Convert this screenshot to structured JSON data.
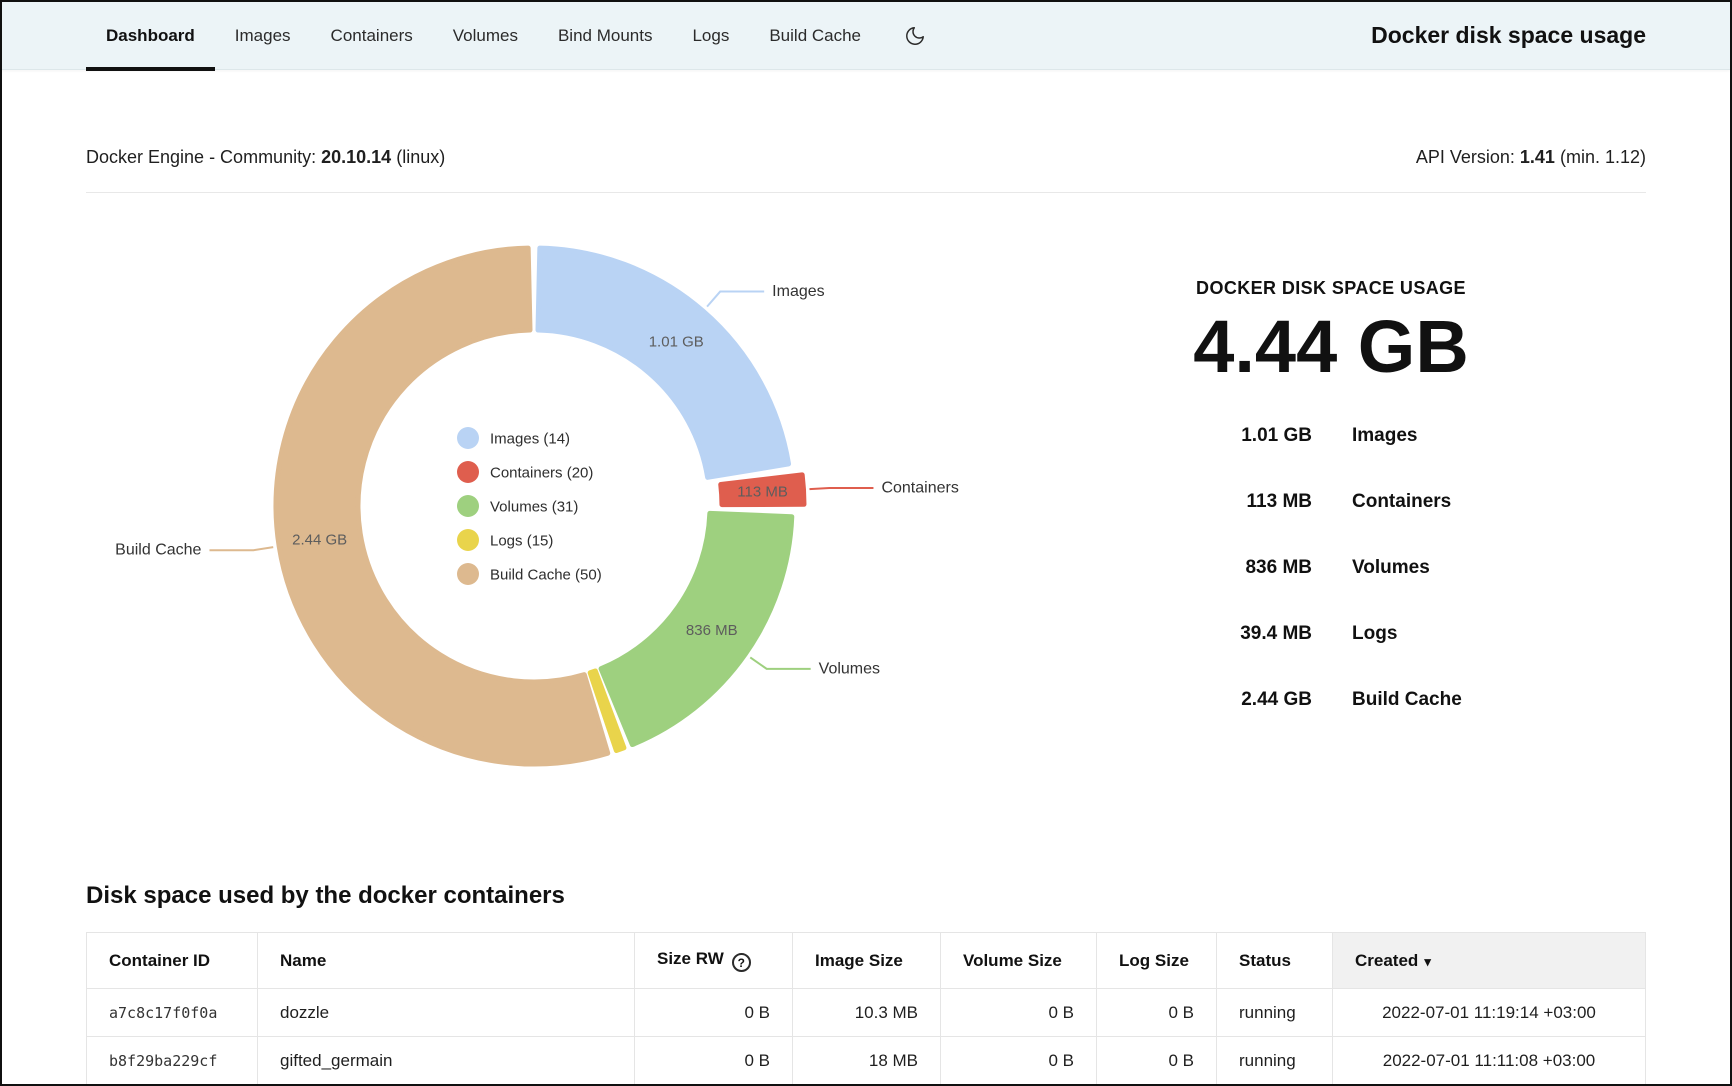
{
  "nav": {
    "tabs": [
      {
        "label": "Dashboard",
        "active": true
      },
      {
        "label": "Images",
        "active": false
      },
      {
        "label": "Containers",
        "active": false
      },
      {
        "label": "Volumes",
        "active": false
      },
      {
        "label": "Bind Mounts",
        "active": false
      },
      {
        "label": "Logs",
        "active": false
      },
      {
        "label": "Build Cache",
        "active": false
      }
    ],
    "title": "Docker disk space usage"
  },
  "engine": {
    "label": "Docker Engine - Community:",
    "version": "20.10.14",
    "platform": "(linux)",
    "api_label": "API Version:",
    "api_version": "1.41",
    "api_min": "(min. 1.12)"
  },
  "chart_data": {
    "type": "pie",
    "title": "DOCKER DISK SPACE USAGE",
    "total_label": "4.44 GB",
    "total_gb": 4.44,
    "legend_position": "center",
    "slices": [
      {
        "name": "Images",
        "count": 14,
        "value_gb": 1.01,
        "size_label": "1.01 GB",
        "color": "#b9d3f4"
      },
      {
        "name": "Containers",
        "count": 20,
        "value_gb": 0.113,
        "size_label": "113 MB",
        "color": "#df5e4e",
        "exploded": true
      },
      {
        "name": "Volumes",
        "count": 31,
        "value_gb": 0.836,
        "size_label": "836 MB",
        "color": "#9ed07f"
      },
      {
        "name": "Logs",
        "count": 15,
        "value_gb": 0.0394,
        "size_label": "39.4 MB",
        "color": "#e9d44b",
        "hide_slice_label": true,
        "hide_callout": true
      },
      {
        "name": "Build Cache",
        "count": 50,
        "value_gb": 2.44,
        "size_label": "2.44 GB",
        "color": "#ddb98f"
      }
    ]
  },
  "summary": {
    "heading": "DOCKER DISK SPACE USAGE",
    "total": "4.44 GB",
    "rows": [
      {
        "size": "1.01 GB",
        "label": "Images"
      },
      {
        "size": "113 MB",
        "label": "Containers"
      },
      {
        "size": "836 MB",
        "label": "Volumes"
      },
      {
        "size": "39.4 MB",
        "label": "Logs"
      },
      {
        "size": "2.44 GB",
        "label": "Build Cache"
      }
    ]
  },
  "containers_section": {
    "heading": "Disk space used by the docker containers",
    "columns": [
      "Container ID",
      "Name",
      "Size RW",
      "Image Size",
      "Volume Size",
      "Log Size",
      "Status",
      "Created"
    ],
    "sort_column": "Created",
    "rows": [
      {
        "container_id": "a7c8c17f0f0a",
        "name": "dozzle",
        "size_rw": "0 B",
        "image_size": "10.3 MB",
        "volume_size": "0 B",
        "log_size": "0 B",
        "status": "running",
        "created": "2022-07-01  11:19:14 +03:00"
      },
      {
        "container_id": "b8f29ba229cf",
        "name": "gifted_germain",
        "size_rw": "0 B",
        "image_size": "18 MB",
        "volume_size": "0 B",
        "log_size": "0 B",
        "status": "running",
        "created": "2022-07-01  11:11:08 +03:00"
      }
    ]
  },
  "icons": {
    "help": "?",
    "sort_desc": "▾"
  },
  "colors": {
    "nav_background": "#ecf4f7",
    "active_tab_underline": "#111111"
  }
}
